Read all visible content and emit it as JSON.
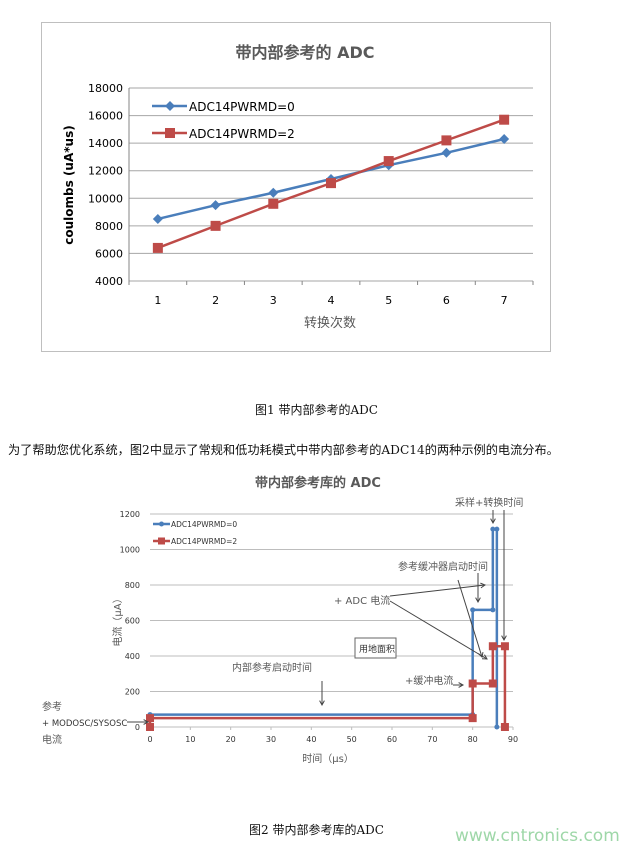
{
  "figure1_caption": "图1 带内部参考的ADC",
  "paragraph": "为了帮助您优化系统，图2中显示了常规和低功耗模式中带内部参考的ADC14的两种示例的电流分布。",
  "figure2_caption": "图2 带内部参考库的ADC",
  "watermark": "www.cntronics.com",
  "colors": {
    "blue": "#4a7ebb",
    "red": "#be4b48",
    "grid": "#a6a6a6"
  },
  "chart_data": [
    {
      "type": "line",
      "title": "带内部参考的 ADC",
      "xlabel": "转换次数",
      "ylabel": "coulombs (uA*us)",
      "categories": [
        "1",
        "2",
        "3",
        "4",
        "5",
        "6",
        "7"
      ],
      "ylim": [
        4000,
        18000
      ],
      "yticks": [
        "4000",
        "6000",
        "8000",
        "10000",
        "12000",
        "14000",
        "16000",
        "18000"
      ],
      "grid": true,
      "legend": "top-left",
      "series": [
        {
          "name": "ADC14PWRMD=0",
          "marker": "diamond",
          "color": "#4a7ebb",
          "values": [
            8500,
            9500,
            10400,
            11400,
            12400,
            13300,
            14300
          ]
        },
        {
          "name": "ADC14PWRMD=2",
          "marker": "square",
          "color": "#be4b48",
          "values": [
            6400,
            8000,
            9600,
            11100,
            12700,
            14200,
            15700
          ]
        }
      ]
    },
    {
      "type": "line",
      "title": "带内部参考库的 ADC",
      "xlabel": "时间（μs）",
      "ylabel": "电流（μA）",
      "xlim": [
        0,
        90
      ],
      "ylim": [
        0,
        1200
      ],
      "xticks": [
        "0",
        "10",
        "20",
        "30",
        "40",
        "50",
        "60",
        "70",
        "80",
        "90"
      ],
      "yticks": [
        "0",
        "200",
        "400",
        "600",
        "800",
        "1000",
        "1200"
      ],
      "grid": true,
      "legend": "top-left",
      "series": [
        {
          "name": "ADC14PWRMD=0",
          "color": "#4a7ebb",
          "points": [
            [
              0,
              70
            ],
            [
              80,
              70
            ],
            [
              80,
              660
            ],
            [
              85,
              660
            ],
            [
              85,
              1115
            ],
            [
              86,
              1115
            ],
            [
              86,
              0
            ]
          ]
        },
        {
          "name": "ADC14PWRMD=2",
          "color": "#be4b48",
          "points": [
            [
              0,
              0
            ],
            [
              0,
              50
            ],
            [
              80,
              50
            ],
            [
              80,
              245
            ],
            [
              85,
              245
            ],
            [
              85,
              455
            ],
            [
              88,
              455
            ],
            [
              88,
              0
            ]
          ]
        }
      ],
      "annotations": {
        "sample_convert": "采样+转换时间",
        "ref_buffer_start": "参考缓冲器启动时间",
        "adc_current": "+ ADC 电流",
        "area_box": "用地面积",
        "internal_ref_start": "内部参考启动时间",
        "buffer_current": "+缓冲电流",
        "left_line1": "参考",
        "left_line2": "+ MODOSC/SYSOSC",
        "left_line3": "电流"
      }
    }
  ]
}
